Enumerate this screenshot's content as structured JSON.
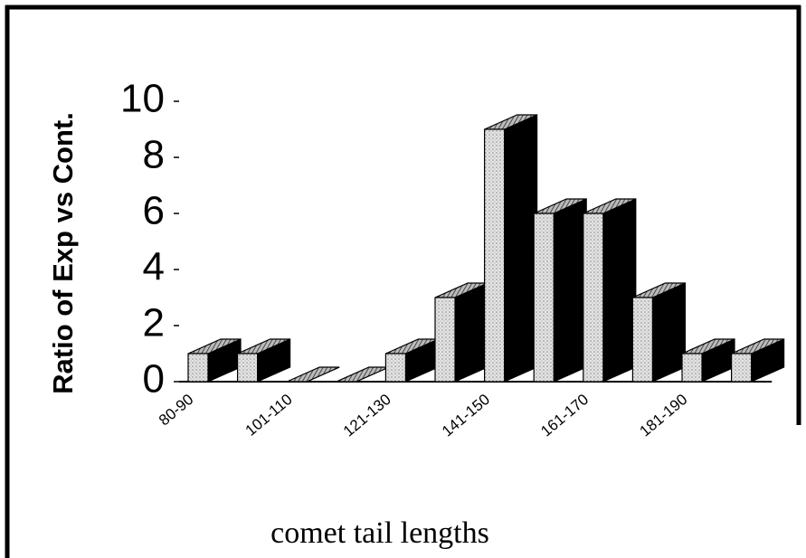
{
  "chart_data": {
    "type": "bar3d",
    "y_label": "Ratio of Exp vs Cont.",
    "x_label": "comet tail lengths",
    "categories": [
      "80-90",
      null,
      "101-110",
      null,
      "121-130",
      null,
      "141-150",
      null,
      "161-170",
      null,
      "181-190",
      null
    ],
    "values": [
      1,
      1,
      0,
      0,
      1,
      3,
      9,
      6,
      6,
      3,
      1,
      1
    ],
    "ylim": [
      0,
      10
    ],
    "yticks": [
      0,
      2,
      4,
      6,
      8,
      10
    ]
  }
}
